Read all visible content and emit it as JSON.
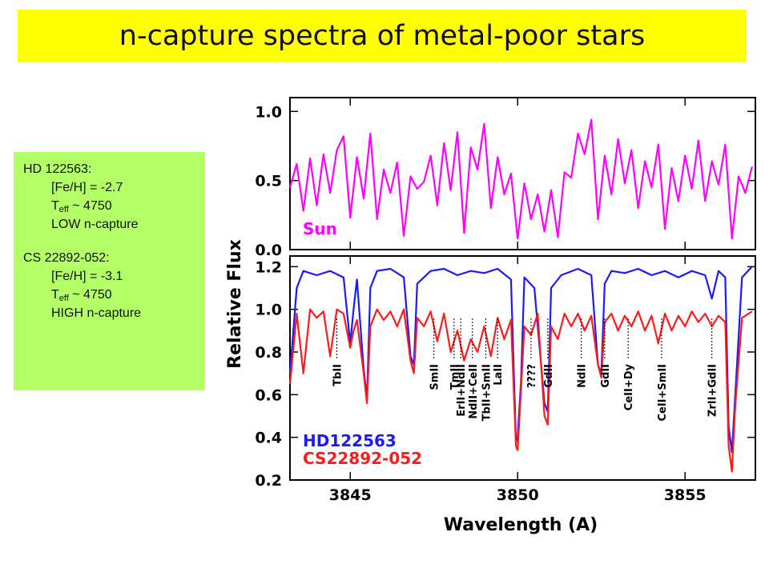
{
  "slide": {
    "title": "n-capture spectra of metal-poor stars",
    "info": {
      "star1_name": "HD 122563:",
      "star1_feh": "[Fe/H] = -2.7",
      "star1_teff_symbol": "T",
      "star1_teff_sub": "eff",
      "star1_teff_value": " ~ 4750",
      "star1_class": "LOW n-capture",
      "star2_name": "CS 22892-052:",
      "star2_feh": "[Fe/H] = -3.1",
      "star2_teff_symbol": "T",
      "star2_teff_sub": "eff",
      "star2_teff_value": " ~ 4750",
      "star2_class": "HIGH n-capture"
    }
  },
  "colors": {
    "sun": "#ff00ff",
    "hd122563": "#1a1aff",
    "cs22892": "#ff1a1a",
    "title_bg": "#ffff00",
    "info_bg": "#b3ff66"
  },
  "chart_data": [
    {
      "type": "line",
      "panel": "top",
      "xlim": [
        3843.2,
        3857.1
      ],
      "ylim": [
        0.0,
        1.1
      ],
      "yticks": [
        0.0,
        0.5,
        1.0
      ],
      "yticklabels": [
        "0.0",
        "0.5",
        "1.0"
      ],
      "series": [
        {
          "name": "Sun",
          "color": "#ff00ff",
          "x": [
            3843.2,
            3843.4,
            3843.6,
            3843.8,
            3844.0,
            3844.2,
            3844.4,
            3844.6,
            3844.8,
            3845.0,
            3845.2,
            3845.4,
            3845.6,
            3845.8,
            3846.0,
            3846.2,
            3846.4,
            3846.6,
            3846.8,
            3847.0,
            3847.2,
            3847.4,
            3847.6,
            3847.8,
            3848.0,
            3848.2,
            3848.4,
            3848.6,
            3848.8,
            3849.0,
            3849.2,
            3849.4,
            3849.6,
            3849.8,
            3850.0,
            3850.2,
            3850.4,
            3850.6,
            3850.8,
            3851.0,
            3851.2,
            3851.4,
            3851.6,
            3851.8,
            3852.0,
            3852.2,
            3852.4,
            3852.6,
            3852.8,
            3853.0,
            3853.2,
            3853.4,
            3853.6,
            3853.8,
            3854.0,
            3854.2,
            3854.4,
            3854.6,
            3854.8,
            3855.0,
            3855.2,
            3855.4,
            3855.6,
            3855.8,
            3856.0,
            3856.2,
            3856.4,
            3856.6,
            3856.8,
            3857.0
          ],
          "y": [
            0.45,
            0.62,
            0.28,
            0.66,
            0.32,
            0.69,
            0.41,
            0.72,
            0.82,
            0.23,
            0.67,
            0.37,
            0.84,
            0.22,
            0.58,
            0.41,
            0.63,
            0.1,
            0.53,
            0.44,
            0.49,
            0.68,
            0.32,
            0.77,
            0.43,
            0.85,
            0.12,
            0.74,
            0.58,
            0.91,
            0.3,
            0.67,
            0.4,
            0.55,
            0.08,
            0.48,
            0.22,
            0.4,
            0.13,
            0.43,
            0.09,
            0.56,
            0.52,
            0.84,
            0.69,
            0.94,
            0.22,
            0.68,
            0.4,
            0.8,
            0.48,
            0.72,
            0.3,
            0.64,
            0.45,
            0.76,
            0.15,
            0.59,
            0.35,
            0.68,
            0.44,
            0.79,
            0.35,
            0.64,
            0.47,
            0.76,
            0.08,
            0.53,
            0.41,
            0.6
          ]
        }
      ],
      "annotations": [
        "Sun"
      ]
    },
    {
      "type": "line",
      "panel": "bottom",
      "xlabel": "Wavelength (A)",
      "ylabel": "Relative Flux",
      "xlim": [
        3843.2,
        3857.1
      ],
      "ylim": [
        0.2,
        1.25
      ],
      "xticks": [
        3845,
        3850,
        3855
      ],
      "xticklabels": [
        "3845",
        "3850",
        "3855"
      ],
      "yticks": [
        0.2,
        0.4,
        0.6,
        0.8,
        1.0,
        1.2
      ],
      "yticklabels": [
        "0.2",
        "0.4",
        "0.6",
        "0.8",
        "1.0",
        "1.2"
      ],
      "series": [
        {
          "name": "HD122563",
          "color": "#1a1aff",
          "x": [
            3843.2,
            3843.4,
            3843.6,
            3844.0,
            3844.4,
            3844.8,
            3845.0,
            3845.1,
            3845.2,
            3845.4,
            3845.5,
            3845.6,
            3845.8,
            3846.2,
            3846.6,
            3846.8,
            3846.9,
            3847.0,
            3847.4,
            3847.8,
            3848.2,
            3848.6,
            3849.0,
            3849.4,
            3849.8,
            3849.95,
            3850.0,
            3850.1,
            3850.2,
            3850.5,
            3850.8,
            3850.9,
            3851.0,
            3851.3,
            3851.8,
            3852.2,
            3852.4,
            3852.5,
            3852.6,
            3852.8,
            3853.2,
            3853.6,
            3854.0,
            3854.4,
            3854.8,
            3855.2,
            3855.6,
            3855.8,
            3856.0,
            3856.2,
            3856.3,
            3856.4,
            3856.5,
            3856.7,
            3857.0
          ],
          "y": [
            0.7,
            1.1,
            1.18,
            1.16,
            1.18,
            1.15,
            0.84,
            1.0,
            1.14,
            0.72,
            0.58,
            1.1,
            1.18,
            1.19,
            1.15,
            0.78,
            0.74,
            1.12,
            1.18,
            1.19,
            1.16,
            1.18,
            1.17,
            1.19,
            1.14,
            0.38,
            0.4,
            0.66,
            1.15,
            1.1,
            0.56,
            0.52,
            1.1,
            1.16,
            1.19,
            1.16,
            0.74,
            0.7,
            1.12,
            1.18,
            1.17,
            1.19,
            1.16,
            1.18,
            1.15,
            1.18,
            1.16,
            1.05,
            1.18,
            1.15,
            0.45,
            0.33,
            0.6,
            1.15,
            1.2
          ]
        },
        {
          "name": "CS22892-052",
          "color": "#ff1a1a",
          "x": [
            3843.2,
            3843.4,
            3843.6,
            3843.8,
            3844.0,
            3844.2,
            3844.4,
            3844.6,
            3844.8,
            3845.0,
            3845.1,
            3845.2,
            3845.4,
            3845.5,
            3845.6,
            3845.8,
            3846.0,
            3846.2,
            3846.4,
            3846.6,
            3846.8,
            3846.9,
            3847.0,
            3847.2,
            3847.4,
            3847.6,
            3847.8,
            3848.0,
            3848.2,
            3848.4,
            3848.6,
            3848.8,
            3849.0,
            3849.2,
            3849.4,
            3849.6,
            3849.8,
            3849.95,
            3850.0,
            3850.1,
            3850.2,
            3850.4,
            3850.6,
            3850.8,
            3850.9,
            3851.0,
            3851.2,
            3851.4,
            3851.6,
            3851.8,
            3852.0,
            3852.2,
            3852.4,
            3852.5,
            3852.6,
            3852.8,
            3853.0,
            3853.2,
            3853.4,
            3853.6,
            3853.8,
            3854.0,
            3854.2,
            3854.4,
            3854.6,
            3854.8,
            3855.0,
            3855.2,
            3855.4,
            3855.6,
            3855.8,
            3856.0,
            3856.2,
            3856.3,
            3856.4,
            3856.5,
            3856.7,
            3856.9,
            3857.0
          ],
          "y": [
            0.65,
            0.98,
            0.7,
            1.0,
            0.96,
            0.99,
            0.78,
            1.0,
            0.98,
            0.82,
            0.9,
            0.95,
            0.7,
            0.56,
            0.92,
            1.0,
            0.95,
            0.99,
            0.92,
            1.0,
            0.76,
            0.7,
            0.96,
            0.92,
            0.99,
            0.85,
            0.98,
            0.8,
            0.9,
            0.76,
            0.86,
            0.8,
            0.92,
            0.78,
            0.96,
            0.86,
            0.95,
            0.36,
            0.34,
            0.62,
            0.92,
            0.88,
            0.98,
            0.5,
            0.46,
            0.92,
            0.86,
            0.98,
            0.92,
            0.98,
            0.9,
            0.97,
            0.74,
            0.68,
            0.94,
            0.98,
            0.9,
            0.97,
            0.92,
            0.99,
            0.9,
            0.97,
            0.84,
            0.98,
            0.9,
            0.97,
            0.92,
            0.99,
            0.94,
            0.98,
            0.92,
            0.97,
            0.94,
            0.36,
            0.24,
            0.55,
            0.96,
            0.98,
            0.99
          ]
        }
      ],
      "line_ids": [
        {
          "label": "TbII",
          "x": 3844.6
        },
        {
          "label": "SmII",
          "x": 3847.5
        },
        {
          "label": "TmII",
          "x": 3848.1
        },
        {
          "label": "ErII+NdII",
          "x": 3848.3
        },
        {
          "label": "NdII+CeII",
          "x": 3848.65
        },
        {
          "label": "TbII+SmII",
          "x": 3849.05
        },
        {
          "label": "LaII",
          "x": 3849.4
        },
        {
          "label": "????",
          "x": 3850.4
        },
        {
          "label": "GdII",
          "x": 3850.9
        },
        {
          "label": "NdII",
          "x": 3851.9
        },
        {
          "label": "GdII",
          "x": 3852.6
        },
        {
          "label": "CeII+Dy",
          "x": 3853.3
        },
        {
          "label": "CeII+SmII",
          "x": 3854.3
        },
        {
          "label": "ZrII+GdII",
          "x": 3855.8
        }
      ],
      "legend": {
        "placement": "bottom-left",
        "entries": [
          "HD122563",
          "CS22892-052"
        ]
      }
    }
  ]
}
